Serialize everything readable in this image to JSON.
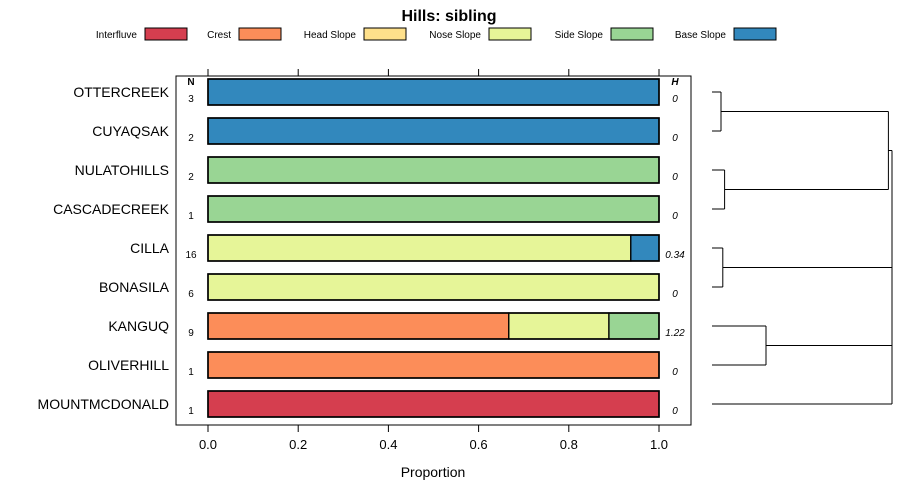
{
  "chart_data": {
    "type": "bar",
    "orientation": "horizontal",
    "stacked": true,
    "title": "Hills: sibling",
    "xlabel": "Proportion",
    "ylabel": "",
    "xlim": [
      0,
      1
    ],
    "x_ticks": [
      "0.0",
      "0.2",
      "0.4",
      "0.6",
      "0.8",
      "1.0"
    ],
    "count_header": "N",
    "entropy_header": "H",
    "legend_position": "top",
    "legend": [
      {
        "name": "Interfluve",
        "color": "#D53E4F"
      },
      {
        "name": "Crest",
        "color": "#FC8D59"
      },
      {
        "name": "Head Slope",
        "color": "#FEE08B"
      },
      {
        "name": "Nose Slope",
        "color": "#E6F598"
      },
      {
        "name": "Side Slope",
        "color": "#99D594"
      },
      {
        "name": "Base Slope",
        "color": "#3288BD"
      }
    ],
    "rows": [
      {
        "label": "OTTERCREEK",
        "n": "3",
        "h": "0",
        "segments": [
          {
            "class": "Base Slope",
            "value": 1.0
          }
        ]
      },
      {
        "label": "CUYAQSAK",
        "n": "2",
        "h": "0",
        "segments": [
          {
            "class": "Base Slope",
            "value": 1.0
          }
        ]
      },
      {
        "label": "NULATOHILLS",
        "n": "2",
        "h": "0",
        "segments": [
          {
            "class": "Side Slope",
            "value": 1.0
          }
        ]
      },
      {
        "label": "CASCADECREEK",
        "n": "1",
        "h": "0",
        "segments": [
          {
            "class": "Side Slope",
            "value": 1.0
          }
        ]
      },
      {
        "label": "CILLA",
        "n": "16",
        "h": "0.34",
        "segments": [
          {
            "class": "Nose Slope",
            "value": 0.9375
          },
          {
            "class": "Base Slope",
            "value": 0.0625
          }
        ]
      },
      {
        "label": "BONASILA",
        "n": "6",
        "h": "0",
        "segments": [
          {
            "class": "Nose Slope",
            "value": 1.0
          }
        ]
      },
      {
        "label": "KANGUQ",
        "n": "9",
        "h": "1.22",
        "segments": [
          {
            "class": "Crest",
            "value": 0.667
          },
          {
            "class": "Nose Slope",
            "value": 0.222
          },
          {
            "class": "Side Slope",
            "value": 0.111
          }
        ]
      },
      {
        "label": "OLIVERHILL",
        "n": "1",
        "h": "0",
        "segments": [
          {
            "class": "Crest",
            "value": 1.0
          }
        ]
      },
      {
        "label": "MOUNTMCDONALD",
        "n": "1",
        "h": "0",
        "segments": [
          {
            "class": "Interfluve",
            "value": 1.0
          }
        ]
      }
    ],
    "dendrogram": {
      "merges": [
        {
          "left": "OTTERCREEK",
          "right": "CUYAQSAK",
          "height": 0.05
        },
        {
          "left": "NULATOHILLS",
          "right": "CASCADECREEK",
          "height": 0.07
        },
        {
          "left": "CILLA",
          "right": "BONASILA",
          "height": 0.06
        },
        {
          "left": "KANGUQ",
          "right": "OLIVERHILL",
          "height": 0.3
        },
        {
          "left": "OTTERCREEK+CUYAQSAK",
          "right": "NULATOHILLS+CASCADECREEK",
          "height": 0.98
        },
        {
          "left": "OTTERCREEK+CUYAQSAK+NULATOHILLS+CASCADECREEK",
          "right": "CILLA+BONASILA",
          "height": 1.0
        },
        {
          "left": "KANGUQ+OLIVERHILL",
          "right": "MOUNTMCDONALD",
          "height": 1.0
        },
        {
          "left": "ALL_UPPER",
          "right": "KANGUQ+OLIVERHILL+MOUNTMCDONALD",
          "height": 1.0
        }
      ]
    }
  }
}
